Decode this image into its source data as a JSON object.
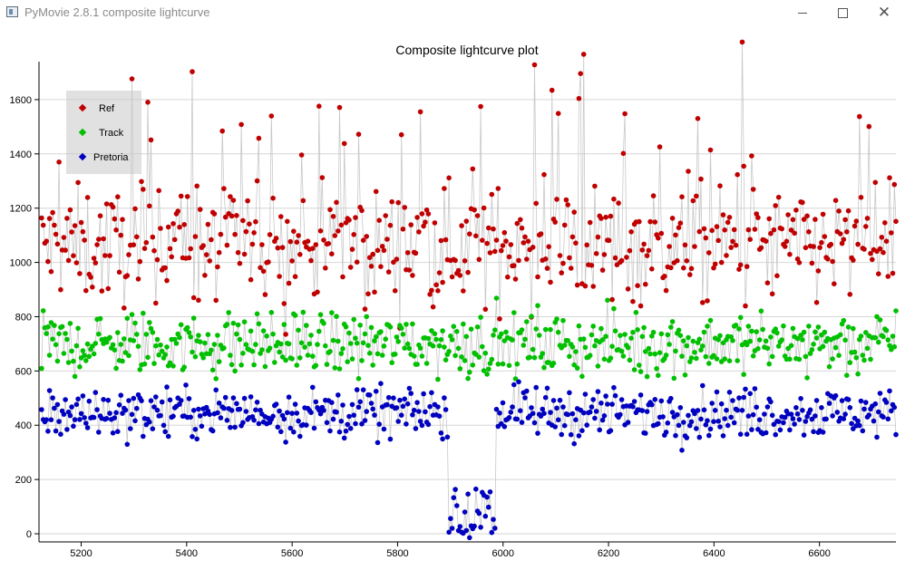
{
  "window": {
    "title": "PyMovie 2.8.1 composite lightcurve",
    "minimize_icon": "minimize-icon",
    "maximize_icon": "maximize-icon",
    "close_icon": "close-icon"
  },
  "chart_data": {
    "type": "scatter",
    "title": "Composite lightcurve plot",
    "xlabel": "",
    "ylabel": "",
    "xlim": [
      5120,
      6745
    ],
    "ylim": [
      -30,
      1740
    ],
    "x_range_data": [
      5125,
      6745
    ],
    "x_ticks": [
      5200,
      5400,
      5600,
      5800,
      6000,
      6200,
      6400,
      6600
    ],
    "y_ticks": [
      0,
      200,
      400,
      600,
      800,
      1000,
      1200,
      1400,
      1600
    ],
    "grid": "horizontal",
    "legend_position": "top-left",
    "connecting_lines": true,
    "series": [
      {
        "name": "Ref",
        "color": "#c00000",
        "base": 1060,
        "spread": 170,
        "notes": "mostly 850-1350, spikes to ~1690"
      },
      {
        "name": "Track",
        "color": "#00c000",
        "base": 700,
        "spread": 95,
        "notes": "mostly 550-880"
      },
      {
        "name": "Pretoria",
        "color": "#0000c0",
        "base": 445,
        "spread": 75,
        "notes": "mostly 300-600; occultation drop to ~0-180 between x≈5895 and x≈5985"
      }
    ],
    "event": {
      "start": 5895,
      "end": 5985,
      "level_min": -20,
      "level_max": 180
    }
  }
}
